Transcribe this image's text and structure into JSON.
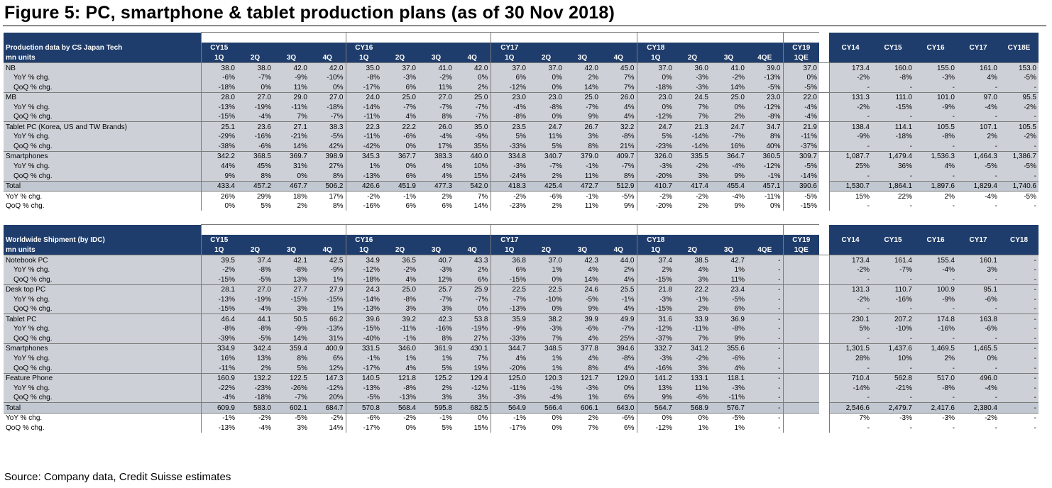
{
  "title": "Figure 5: PC, smartphone & tablet production plans (as of 30 Nov 2018)",
  "source": "Source: Company data, Credit Suisse estimates",
  "colors": {
    "header_navy": "#1f3d6c",
    "row_grey": "#cdd1d7",
    "total_grey": "#c2c8d1"
  },
  "production": {
    "title": "Production data  by CS Japan Tech",
    "units": "mn units",
    "years": [
      "CY15",
      "CY16",
      "CY17",
      "CY18",
      "CY19"
    ],
    "quarters": [
      "1Q",
      "2Q",
      "3Q",
      "4Q",
      "1Q",
      "2Q",
      "3Q",
      "4Q",
      "1Q",
      "2Q",
      "3Q",
      "4Q",
      "1Q",
      "2Q",
      "3Q",
      "4QE",
      "1QE"
    ],
    "annual_headers": [
      "CY14",
      "CY15",
      "CY16",
      "CY17",
      "CY18E"
    ],
    "rows": [
      {
        "label": "NB",
        "sub": false,
        "q": [
          "38.0",
          "38.0",
          "42.0",
          "42.0",
          "35.0",
          "37.0",
          "41.0",
          "42.0",
          "37.0",
          "37.0",
          "42.0",
          "45.0",
          "37.0",
          "36.0",
          "41.0",
          "39.0",
          "37.0"
        ],
        "a": [
          "173.4",
          "160.0",
          "155.0",
          "161.0",
          "153.0"
        ]
      },
      {
        "label": "YoY % chg.",
        "sub": true,
        "q": [
          "-6%",
          "-7%",
          "-9%",
          "-10%",
          "-8%",
          "-3%",
          "-2%",
          "0%",
          "6%",
          "0%",
          "2%",
          "7%",
          "0%",
          "-3%",
          "-2%",
          "-13%",
          "0%"
        ],
        "a": [
          "-2%",
          "-8%",
          "-3%",
          "4%",
          "-5%"
        ]
      },
      {
        "label": "QoQ % chg.",
        "sub": true,
        "q": [
          "-18%",
          "0%",
          "11%",
          "0%",
          "-17%",
          "6%",
          "11%",
          "2%",
          "-12%",
          "0%",
          "14%",
          "7%",
          "-18%",
          "-3%",
          "14%",
          "-5%",
          "-5%"
        ],
        "a": [
          "-",
          "-",
          "-",
          "-",
          "-"
        ]
      },
      {
        "label": "MB",
        "sub": false,
        "q": [
          "28.0",
          "27.0",
          "29.0",
          "27.0",
          "24.0",
          "25.0",
          "27.0",
          "25.0",
          "23.0",
          "23.0",
          "25.0",
          "26.0",
          "23.0",
          "24.5",
          "25.0",
          "23.0",
          "22.0"
        ],
        "a": [
          "131.3",
          "111.0",
          "101.0",
          "97.0",
          "95.5"
        ]
      },
      {
        "label": "YoY % chg.",
        "sub": true,
        "q": [
          "-13%",
          "-19%",
          "-11%",
          "-18%",
          "-14%",
          "-7%",
          "-7%",
          "-7%",
          "-4%",
          "-8%",
          "-7%",
          "4%",
          "0%",
          "7%",
          "0%",
          "-12%",
          "-4%"
        ],
        "a": [
          "-2%",
          "-15%",
          "-9%",
          "-4%",
          "-2%"
        ]
      },
      {
        "label": "QoQ % chg.",
        "sub": true,
        "q": [
          "-15%",
          "-4%",
          "7%",
          "-7%",
          "-11%",
          "4%",
          "8%",
          "-7%",
          "-8%",
          "0%",
          "9%",
          "4%",
          "-12%",
          "7%",
          "2%",
          "-8%",
          "-4%"
        ],
        "a": [
          "-",
          "-",
          "-",
          "-",
          "-"
        ]
      },
      {
        "label": "Tablet PC (Korea, US and TW Brands)",
        "sub": false,
        "q": [
          "25.1",
          "23.6",
          "27.1",
          "38.3",
          "22.3",
          "22.2",
          "26.0",
          "35.0",
          "23.5",
          "24.7",
          "26.7",
          "32.2",
          "24.7",
          "21.3",
          "24.7",
          "34.7",
          "21.9"
        ],
        "a": [
          "138.4",
          "114.1",
          "105.5",
          "107.1",
          "105.5"
        ]
      },
      {
        "label": "YoY % chg.",
        "sub": true,
        "q": [
          "-29%",
          "-16%",
          "-21%",
          "-5%",
          "-11%",
          "-6%",
          "-4%",
          "-9%",
          "5%",
          "11%",
          "3%",
          "-8%",
          "5%",
          "-14%",
          "-7%",
          "8%",
          "-11%"
        ],
        "a": [
          "-9%",
          "-18%",
          "-8%",
          "2%",
          "-2%"
        ]
      },
      {
        "label": "QoQ % chg.",
        "sub": true,
        "q": [
          "-38%",
          "-6%",
          "14%",
          "42%",
          "-42%",
          "0%",
          "17%",
          "35%",
          "-33%",
          "5%",
          "8%",
          "21%",
          "-23%",
          "-14%",
          "16%",
          "40%",
          "-37%"
        ],
        "a": [
          "-",
          "-",
          "-",
          "-",
          "-"
        ]
      },
      {
        "label": "Smartphones",
        "sub": false,
        "q": [
          "342.2",
          "368.5",
          "369.7",
          "398.9",
          "345.3",
          "367.7",
          "383.3",
          "440.0",
          "334.8",
          "340.7",
          "379.0",
          "409.7",
          "326.0",
          "335.5",
          "364.7",
          "360.5",
          "309.7"
        ],
        "a": [
          "1,087.7",
          "1,479.4",
          "1,536.3",
          "1,464.3",
          "1,386.7"
        ]
      },
      {
        "label": "YoY % chg.",
        "sub": true,
        "q": [
          "44%",
          "45%",
          "31%",
          "27%",
          "1%",
          "0%",
          "4%",
          "10%",
          "-3%",
          "-7%",
          "-1%",
          "-7%",
          "-3%",
          "-2%",
          "-4%",
          "-12%",
          "-5%"
        ],
        "a": [
          "25%",
          "36%",
          "4%",
          "-5%",
          "-5%"
        ]
      },
      {
        "label": "QoQ % chg.",
        "sub": true,
        "q": [
          "9%",
          "8%",
          "0%",
          "8%",
          "-13%",
          "6%",
          "4%",
          "15%",
          "-24%",
          "2%",
          "11%",
          "8%",
          "-20%",
          "3%",
          "9%",
          "-1%",
          "-14%"
        ],
        "a": [
          "-",
          "-",
          "-",
          "-",
          "-"
        ]
      },
      {
        "label": "Total",
        "sub": false,
        "total": true,
        "q": [
          "433.4",
          "457.2",
          "467.7",
          "506.2",
          "426.6",
          "451.9",
          "477.3",
          "542.0",
          "418.3",
          "425.4",
          "472.7",
          "512.9",
          "410.7",
          "417.4",
          "455.4",
          "457.1",
          "390.6"
        ],
        "a": [
          "1,530.7",
          "1,864.1",
          "1,897.6",
          "1,829.4",
          "1,740.6"
        ]
      },
      {
        "label": "YoY % chg.",
        "sub": false,
        "q": [
          "26%",
          "29%",
          "18%",
          "17%",
          "-2%",
          "-1%",
          "2%",
          "7%",
          "-2%",
          "-6%",
          "-1%",
          "-5%",
          "-2%",
          "-2%",
          "-4%",
          "-11%",
          "-5%"
        ],
        "a": [
          "15%",
          "22%",
          "2%",
          "-4%",
          "-5%"
        ]
      },
      {
        "label": "QoQ % chg.",
        "sub": false,
        "q": [
          "0%",
          "5%",
          "2%",
          "8%",
          "-16%",
          "6%",
          "6%",
          "14%",
          "-23%",
          "2%",
          "11%",
          "9%",
          "-20%",
          "2%",
          "9%",
          "0%",
          "-15%"
        ],
        "a": [
          "-",
          "-",
          "-",
          "-",
          "-"
        ]
      }
    ]
  },
  "shipment": {
    "title": "Worldwide Shipment (by IDC)",
    "units": "mn units",
    "years": [
      "CY15",
      "CY16",
      "CY17",
      "CY18",
      "CY19"
    ],
    "quarters": [
      "1Q",
      "2Q",
      "3Q",
      "4Q",
      "1Q",
      "2Q",
      "3Q",
      "4Q",
      "1Q",
      "2Q",
      "3Q",
      "4Q",
      "1Q",
      "2Q",
      "3Q",
      "4QE",
      "1QE"
    ],
    "annual_headers": [
      "CY14",
      "CY15",
      "CY16",
      "CY17",
      "CY18"
    ],
    "rows": [
      {
        "label": "Notebook PC",
        "sub": false,
        "q": [
          "39.5",
          "37.4",
          "42.1",
          "42.5",
          "34.9",
          "36.5",
          "40.7",
          "43.3",
          "36.8",
          "37.0",
          "42.3",
          "44.0",
          "37.4",
          "38.5",
          "42.7",
          "-",
          ""
        ],
        "a": [
          "173.4",
          "161.4",
          "155.4",
          "160.1",
          "-"
        ]
      },
      {
        "label": "YoY % chg.",
        "sub": true,
        "q": [
          "-2%",
          "-8%",
          "-8%",
          "-9%",
          "-12%",
          "-2%",
          "-3%",
          "2%",
          "6%",
          "1%",
          "4%",
          "2%",
          "2%",
          "4%",
          "1%",
          "-",
          ""
        ],
        "a": [
          "-2%",
          "-7%",
          "-4%",
          "3%",
          "-"
        ]
      },
      {
        "label": "QoQ % chg.",
        "sub": true,
        "q": [
          "-15%",
          "-5%",
          "13%",
          "1%",
          "-18%",
          "4%",
          "12%",
          "6%",
          "-15%",
          "0%",
          "14%",
          "4%",
          "-15%",
          "3%",
          "11%",
          "-",
          ""
        ],
        "a": [
          "-",
          "-",
          "-",
          "-",
          "-"
        ]
      },
      {
        "label": "Desk top PC",
        "sub": false,
        "q": [
          "28.1",
          "27.0",
          "27.7",
          "27.9",
          "24.3",
          "25.0",
          "25.7",
          "25.9",
          "22.5",
          "22.5",
          "24.6",
          "25.5",
          "21.8",
          "22.2",
          "23.4",
          "-",
          ""
        ],
        "a": [
          "131.3",
          "110.7",
          "100.9",
          "95.1",
          "-"
        ]
      },
      {
        "label": "YoY % chg.",
        "sub": true,
        "q": [
          "-13%",
          "-19%",
          "-15%",
          "-15%",
          "-14%",
          "-8%",
          "-7%",
          "-7%",
          "-7%",
          "-10%",
          "-5%",
          "-1%",
          "-3%",
          "-1%",
          "-5%",
          "-",
          ""
        ],
        "a": [
          "-2%",
          "-16%",
          "-9%",
          "-6%",
          "-"
        ]
      },
      {
        "label": "QoQ % chg.",
        "sub": true,
        "q": [
          "-15%",
          "-4%",
          "3%",
          "1%",
          "-13%",
          "3%",
          "3%",
          "0%",
          "-13%",
          "0%",
          "9%",
          "4%",
          "-15%",
          "2%",
          "6%",
          "-",
          ""
        ],
        "a": [
          "-",
          "-",
          "-",
          "-",
          "-"
        ]
      },
      {
        "label": "Tablet PC",
        "sub": false,
        "q": [
          "46.4",
          "44.1",
          "50.5",
          "66.2",
          "39.6",
          "39.2",
          "42.3",
          "53.8",
          "35.9",
          "38.2",
          "39.9",
          "49.9",
          "31.6",
          "33.9",
          "36.9",
          "-",
          ""
        ],
        "a": [
          "230.1",
          "207.2",
          "174.8",
          "163.8",
          "-"
        ]
      },
      {
        "label": "YoY % chg.",
        "sub": true,
        "q": [
          "-8%",
          "-8%",
          "-9%",
          "-13%",
          "-15%",
          "-11%",
          "-16%",
          "-19%",
          "-9%",
          "-3%",
          "-6%",
          "-7%",
          "-12%",
          "-11%",
          "-8%",
          "-",
          ""
        ],
        "a": [
          "5%",
          "-10%",
          "-16%",
          "-6%",
          "-"
        ]
      },
      {
        "label": "QoQ % chg.",
        "sub": true,
        "q": [
          "-39%",
          "-5%",
          "14%",
          "31%",
          "-40%",
          "-1%",
          "8%",
          "27%",
          "-33%",
          "7%",
          "4%",
          "25%",
          "-37%",
          "7%",
          "9%",
          "-",
          ""
        ],
        "a": [
          "-",
          "-",
          "-",
          "-",
          "-"
        ]
      },
      {
        "label": "Smartphones",
        "sub": false,
        "q": [
          "334.9",
          "342.4",
          "359.4",
          "400.9",
          "331.5",
          "346.0",
          "361.9",
          "430.1",
          "344.7",
          "348.5",
          "377.8",
          "394.6",
          "332.7",
          "341.2",
          "355.6",
          "-",
          ""
        ],
        "a": [
          "1,301.5",
          "1,437.6",
          "1,469.5",
          "1,465.5",
          "-"
        ]
      },
      {
        "label": "YoY % chg.",
        "sub": true,
        "q": [
          "16%",
          "13%",
          "8%",
          "6%",
          "-1%",
          "1%",
          "1%",
          "7%",
          "4%",
          "1%",
          "4%",
          "-8%",
          "-3%",
          "-2%",
          "-6%",
          "-",
          ""
        ],
        "a": [
          "28%",
          "10%",
          "2%",
          "0%",
          "-"
        ]
      },
      {
        "label": "QoQ % chg.",
        "sub": true,
        "q": [
          "-11%",
          "2%",
          "5%",
          "12%",
          "-17%",
          "4%",
          "5%",
          "19%",
          "-20%",
          "1%",
          "8%",
          "4%",
          "-16%",
          "3%",
          "4%",
          "-",
          ""
        ],
        "a": [
          "-",
          "-",
          "-",
          "-",
          "-"
        ]
      },
      {
        "label": "Feature Phone",
        "sub": false,
        "q": [
          "160.9",
          "132.2",
          "122.5",
          "147.3",
          "140.5",
          "121.8",
          "125.2",
          "129.4",
          "125.0",
          "120.3",
          "121.7",
          "129.0",
          "141.2",
          "133.1",
          "118.1",
          "-",
          ""
        ],
        "a": [
          "710.4",
          "562.8",
          "517.0",
          "496.0",
          "-"
        ]
      },
      {
        "label": "YoY % chg.",
        "sub": true,
        "q": [
          "-22%",
          "-23%",
          "-26%",
          "-12%",
          "-13%",
          "-8%",
          "2%",
          "-12%",
          "-11%",
          "-1%",
          "-3%",
          "0%",
          "13%",
          "11%",
          "-3%",
          "-",
          ""
        ],
        "a": [
          "-14%",
          "-21%",
          "-8%",
          "-4%",
          "-"
        ]
      },
      {
        "label": "QoQ % chg.",
        "sub": true,
        "q": [
          "-4%",
          "-18%",
          "-7%",
          "20%",
          "-5%",
          "-13%",
          "3%",
          "3%",
          "-3%",
          "-4%",
          "1%",
          "6%",
          "9%",
          "-6%",
          "-11%",
          "-",
          ""
        ],
        "a": [
          "-",
          "-",
          "-",
          "-",
          "-"
        ]
      },
      {
        "label": "Total",
        "sub": false,
        "total": true,
        "q": [
          "609.9",
          "583.0",
          "602.1",
          "684.7",
          "570.8",
          "568.4",
          "595.8",
          "682.5",
          "564.9",
          "566.4",
          "606.1",
          "643.0",
          "564.7",
          "568.9",
          "576.7",
          "-",
          ""
        ],
        "a": [
          "2,546.6",
          "2,479.7",
          "2,417.6",
          "2,380.4",
          "-"
        ]
      },
      {
        "label": "YoY % chg.",
        "sub": false,
        "q": [
          "-1%",
          "-2%",
          "-5%",
          "-2%",
          "-6%",
          "-2%",
          "-1%",
          "0%",
          "-1%",
          "0%",
          "2%",
          "-6%",
          "0%",
          "0%",
          "-5%",
          "-",
          ""
        ],
        "a": [
          "7%",
          "-3%",
          "-3%",
          "-2%",
          "-"
        ]
      },
      {
        "label": "QoQ % chg.",
        "sub": false,
        "q": [
          "-13%",
          "-4%",
          "3%",
          "14%",
          "-17%",
          "0%",
          "5%",
          "15%",
          "-17%",
          "0%",
          "7%",
          "6%",
          "-12%",
          "1%",
          "1%",
          "-",
          ""
        ],
        "a": [
          "-",
          "-",
          "-",
          "-",
          "-"
        ]
      }
    ]
  }
}
